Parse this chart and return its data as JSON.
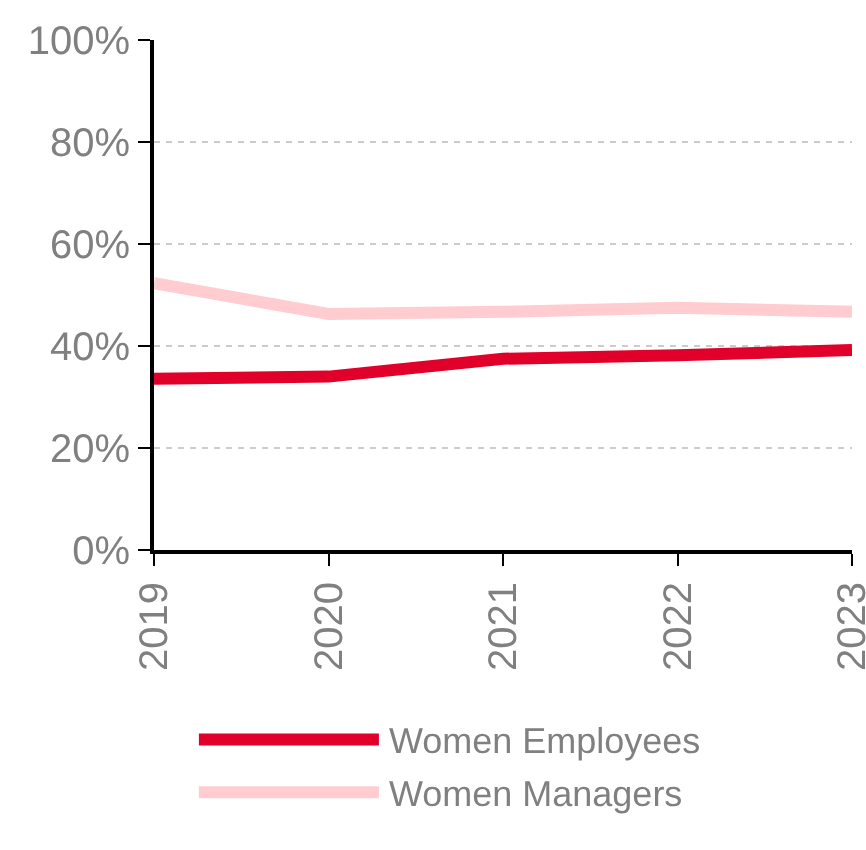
{
  "chart_data": {
    "type": "line",
    "categories": [
      "2019",
      "2020",
      "2021",
      "2022",
      "2023"
    ],
    "series": [
      {
        "name": "Women Employees",
        "color": "#e0002a",
        "values": [
          33.6,
          34,
          37.5,
          38.2,
          39.2
        ]
      },
      {
        "name": "Women Managers",
        "color": "#ffcccf",
        "values": [
          52.3,
          46.3,
          46.7,
          47.5,
          46.7
        ]
      }
    ],
    "ylim": [
      0,
      100
    ],
    "yticks": [
      {
        "value": 0,
        "label": "0%"
      },
      {
        "value": 20,
        "label": "20%"
      },
      {
        "value": 40,
        "label": "40%"
      },
      {
        "value": 60,
        "label": "60%"
      },
      {
        "value": 80,
        "label": "80%"
      },
      {
        "value": 100,
        "label": "100%"
      }
    ],
    "grid": "y",
    "legend": "bottom",
    "marker": "none",
    "line_style": "solid"
  }
}
